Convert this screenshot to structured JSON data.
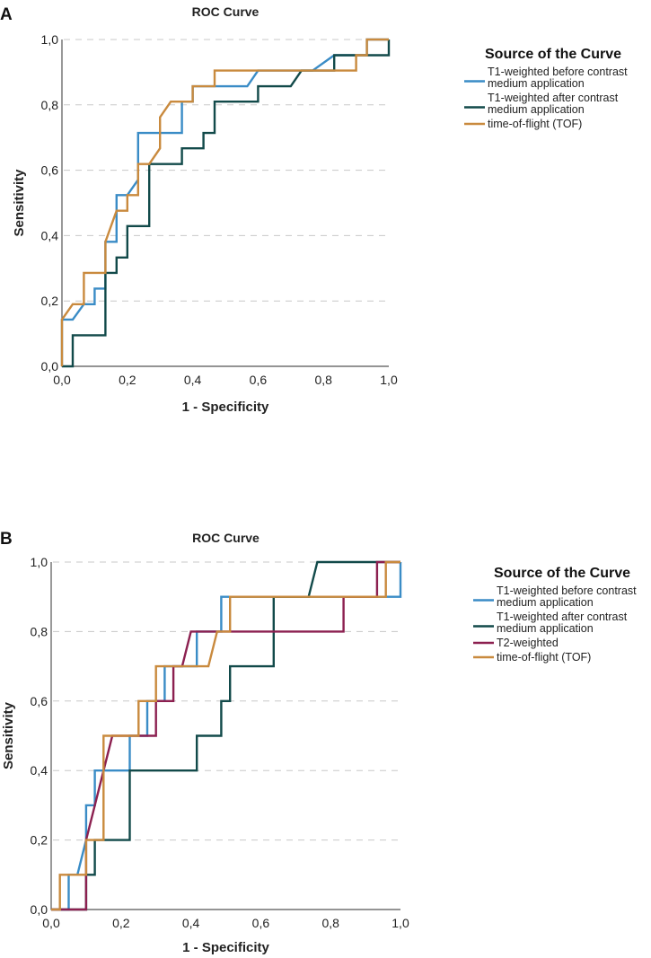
{
  "chart_data": [
    {
      "panel": "A",
      "type": "line",
      "title": "ROC Curve",
      "xlabel": "1 - Specificity",
      "ylabel": "Sensitivity",
      "xlim": [
        0,
        1
      ],
      "ylim": [
        0,
        1
      ],
      "xticks": [
        "0,0",
        "0,2",
        "0,4",
        "0,6",
        "0,8",
        "1,0"
      ],
      "yticks": [
        "0,0",
        "0,2",
        "0,4",
        "0,6",
        "0,8",
        "1,0"
      ],
      "grid": "horizontal-dashed",
      "legend": {
        "title": "Source of the Curve",
        "placement": "right"
      },
      "series": [
        {
          "name": "T1-weighted before contrast medium application",
          "legend_lines": [
            "T1-weighted before contrast",
            "medium application"
          ],
          "color": "#3a8cc6",
          "points": [
            [
              0,
              0
            ],
            [
              0,
              0.143
            ],
            [
              0.033,
              0.143
            ],
            [
              0.067,
              0.19
            ],
            [
              0.1,
              0.19
            ],
            [
              0.1,
              0.238
            ],
            [
              0.133,
              0.238
            ],
            [
              0.133,
              0.381
            ],
            [
              0.167,
              0.381
            ],
            [
              0.167,
              0.524
            ],
            [
              0.2,
              0.524
            ],
            [
              0.233,
              0.571
            ],
            [
              0.233,
              0.714
            ],
            [
              0.367,
              0.714
            ],
            [
              0.367,
              0.81
            ],
            [
              0.4,
              0.81
            ],
            [
              0.4,
              0.857
            ],
            [
              0.567,
              0.857
            ],
            [
              0.6,
              0.905
            ],
            [
              0.767,
              0.905
            ],
            [
              0.833,
              0.952
            ],
            [
              0.933,
              0.952
            ],
            [
              0.933,
              1
            ],
            [
              1,
              1
            ]
          ]
        },
        {
          "name": "T1-weighted after contrast medium application",
          "legend_lines": [
            "T1-weighted after contrast",
            "medium application"
          ],
          "color": "#124a4a",
          "points": [
            [
              0,
              0
            ],
            [
              0.033,
              0
            ],
            [
              0.033,
              0.095
            ],
            [
              0.133,
              0.095
            ],
            [
              0.133,
              0.286
            ],
            [
              0.167,
              0.286
            ],
            [
              0.167,
              0.333
            ],
            [
              0.2,
              0.333
            ],
            [
              0.2,
              0.429
            ],
            [
              0.267,
              0.429
            ],
            [
              0.267,
              0.619
            ],
            [
              0.367,
              0.619
            ],
            [
              0.367,
              0.667
            ],
            [
              0.433,
              0.667
            ],
            [
              0.433,
              0.714
            ],
            [
              0.467,
              0.714
            ],
            [
              0.467,
              0.81
            ],
            [
              0.6,
              0.81
            ],
            [
              0.6,
              0.857
            ],
            [
              0.7,
              0.857
            ],
            [
              0.733,
              0.905
            ],
            [
              0.833,
              0.905
            ],
            [
              0.833,
              0.952
            ],
            [
              1,
              0.952
            ],
            [
              1,
              1
            ]
          ]
        },
        {
          "name": "time-of-flight (TOF)",
          "legend_lines": [
            "time-of-flight (TOF)"
          ],
          "color": "#c98a3e",
          "points": [
            [
              0,
              0
            ],
            [
              0,
              0.143
            ],
            [
              0.033,
              0.19
            ],
            [
              0.067,
              0.19
            ],
            [
              0.067,
              0.286
            ],
            [
              0.133,
              0.286
            ],
            [
              0.133,
              0.381
            ],
            [
              0.167,
              0.476
            ],
            [
              0.2,
              0.476
            ],
            [
              0.2,
              0.524
            ],
            [
              0.233,
              0.524
            ],
            [
              0.233,
              0.619
            ],
            [
              0.267,
              0.619
            ],
            [
              0.3,
              0.667
            ],
            [
              0.3,
              0.762
            ],
            [
              0.333,
              0.81
            ],
            [
              0.4,
              0.81
            ],
            [
              0.4,
              0.857
            ],
            [
              0.467,
              0.857
            ],
            [
              0.467,
              0.905
            ],
            [
              0.9,
              0.905
            ],
            [
              0.9,
              0.952
            ],
            [
              0.933,
              0.952
            ],
            [
              0.933,
              1
            ],
            [
              1,
              1
            ]
          ]
        }
      ]
    },
    {
      "panel": "B",
      "type": "line",
      "title": "ROC Curve",
      "xlabel": "1 - Specificity",
      "ylabel": "Sensitivity",
      "xlim": [
        0,
        1
      ],
      "ylim": [
        0,
        1
      ],
      "xticks": [
        "0,0",
        "0,2",
        "0,4",
        "0,6",
        "0,8",
        "1,0"
      ],
      "yticks": [
        "0,0",
        "0,2",
        "0,4",
        "0,6",
        "0,8",
        "1,0"
      ],
      "grid": "horizontal-dashed",
      "legend": {
        "title": "Source of the Curve",
        "placement": "right"
      },
      "series": [
        {
          "name": "T1-weighted before contrast medium application",
          "legend_lines": [
            "T1-weighted before contrast",
            "medium application"
          ],
          "color": "#3a8cc6",
          "points": [
            [
              0,
              0
            ],
            [
              0.05,
              0
            ],
            [
              0.05,
              0.1
            ],
            [
              0.075,
              0.1
            ],
            [
              0.1,
              0.2
            ],
            [
              0.1,
              0.3
            ],
            [
              0.125,
              0.3
            ],
            [
              0.125,
              0.4
            ],
            [
              0.225,
              0.4
            ],
            [
              0.225,
              0.5
            ],
            [
              0.275,
              0.5
            ],
            [
              0.275,
              0.6
            ],
            [
              0.325,
              0.6
            ],
            [
              0.325,
              0.7
            ],
            [
              0.417,
              0.7
            ],
            [
              0.417,
              0.8
            ],
            [
              0.487,
              0.8
            ],
            [
              0.487,
              0.9
            ],
            [
              0.95,
              0.9
            ],
            [
              0.95,
              0.9
            ],
            [
              1,
              0.9
            ],
            [
              1,
              1
            ]
          ]
        },
        {
          "name": "T1-weighted after contrast medium application",
          "legend_lines": [
            "T1-weighted after contrast",
            "medium application"
          ],
          "color": "#124a4a",
          "points": [
            [
              0,
              0
            ],
            [
              0.1,
              0
            ],
            [
              0.1,
              0.1
            ],
            [
              0.125,
              0.1
            ],
            [
              0.125,
              0.2
            ],
            [
              0.225,
              0.2
            ],
            [
              0.225,
              0.4
            ],
            [
              0.417,
              0.4
            ],
            [
              0.417,
              0.5
            ],
            [
              0.487,
              0.5
            ],
            [
              0.487,
              0.6
            ],
            [
              0.512,
              0.6
            ],
            [
              0.512,
              0.7
            ],
            [
              0.637,
              0.7
            ],
            [
              0.637,
              0.9
            ],
            [
              0.737,
              0.9
            ],
            [
              0.762,
              1
            ],
            [
              1,
              1
            ]
          ]
        },
        {
          "name": "T2-weighted",
          "legend_lines": [
            "T2-weighted"
          ],
          "color": "#8c2050",
          "points": [
            [
              0,
              0
            ],
            [
              0.1,
              0
            ],
            [
              0.1,
              0.2
            ],
            [
              0.175,
              0.5
            ],
            [
              0.25,
              0.5
            ],
            [
              0.25,
              0.5
            ],
            [
              0.3,
              0.5
            ],
            [
              0.3,
              0.6
            ],
            [
              0.35,
              0.6
            ],
            [
              0.35,
              0.7
            ],
            [
              0.375,
              0.7
            ],
            [
              0.4,
              0.8
            ],
            [
              0.512,
              0.8
            ],
            [
              0.837,
              0.8
            ],
            [
              0.837,
              0.9
            ],
            [
              0.933,
              0.9
            ],
            [
              0.933,
              1
            ],
            [
              1,
              1
            ]
          ]
        },
        {
          "name": "time-of-flight (TOF)",
          "legend_lines": [
            "time-of-flight (TOF)"
          ],
          "color": "#c98a3e",
          "points": [
            [
              0,
              0
            ],
            [
              0.025,
              0
            ],
            [
              0.025,
              0.1
            ],
            [
              0.1,
              0.1
            ],
            [
              0.1,
              0.2
            ],
            [
              0.15,
              0.2
            ],
            [
              0.15,
              0.5
            ],
            [
              0.25,
              0.5
            ],
            [
              0.25,
              0.6
            ],
            [
              0.3,
              0.6
            ],
            [
              0.3,
              0.7
            ],
            [
              0.45,
              0.7
            ],
            [
              0.475,
              0.8
            ],
            [
              0.512,
              0.8
            ],
            [
              0.512,
              0.9
            ],
            [
              0.958,
              0.9
            ],
            [
              0.958,
              1
            ],
            [
              1,
              1
            ]
          ]
        }
      ]
    }
  ]
}
